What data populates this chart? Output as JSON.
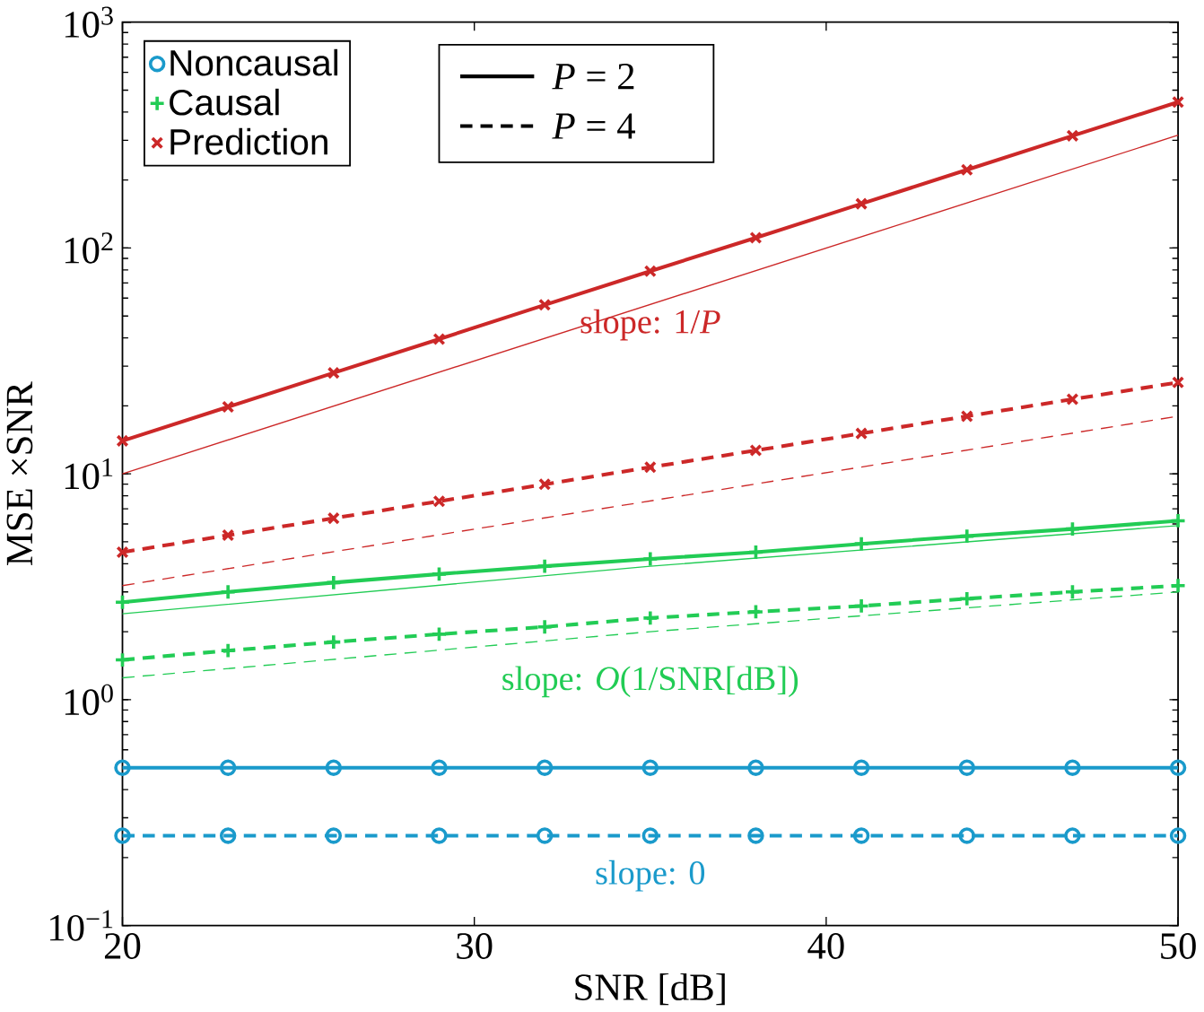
{
  "chart_data": {
    "type": "line",
    "xlabel": "SNR [dB]",
    "ylabel": "MSE ×SNR",
    "log": "y",
    "legend": "top left",
    "grid": false,
    "x": [
      20,
      23,
      26,
      29,
      32,
      35,
      38,
      41,
      44,
      47,
      50
    ],
    "xlim": [
      20,
      50
    ],
    "xticks": [
      20,
      30,
      40,
      50
    ],
    "ylim": [
      0.1,
      1000
    ],
    "yticks": [
      {
        "value": 0.1,
        "label": "10$^{−1}$"
      },
      {
        "value": 1,
        "label": "10$^{0}$"
      },
      {
        "value": 10,
        "label": "10$^{1}$"
      },
      {
        "value": 100,
        "label": "10$^{2}$"
      },
      {
        "value": 1000,
        "label": "10$^{3}$"
      }
    ],
    "series": [
      {
        "name": "Noncausal",
        "color": "#1a9acb",
        "marker": "circle",
        "line_style": "solid",
        "values": [
          0.5,
          0.5,
          0.5,
          0.5,
          0.5,
          0.5,
          0.5,
          0.5,
          0.5,
          0.5,
          0.5
        ]
      },
      {
        "name": "Causal",
        "color": "#22cc55",
        "marker": "plus",
        "line_style": "solid",
        "values": [
          2.7,
          3.0,
          3.3,
          3.6,
          3.9,
          4.2,
          4.5,
          4.9,
          5.3,
          5.7,
          6.2
        ]
      },
      {
        "name": "Prediction",
        "color": "#cc2828",
        "marker": "cross",
        "line_style": "solid",
        "values": [
          14,
          19.8,
          28,
          39.5,
          56,
          79,
          111,
          157,
          222,
          314,
          443
        ]
      },
      {
        "color": "#1a9acb",
        "marker": "circle",
        "line_style": "dashed",
        "values": [
          0.25,
          0.25,
          0.25,
          0.25,
          0.25,
          0.25,
          0.25,
          0.25,
          0.25,
          0.25,
          0.25
        ]
      },
      {
        "color": "#22cc55",
        "marker": "plus",
        "line_style": "dashed",
        "values": [
          1.5,
          1.65,
          1.8,
          1.95,
          2.1,
          2.3,
          2.45,
          2.6,
          2.8,
          3.0,
          3.2
        ]
      },
      {
        "color": "#cc2828",
        "marker": "cross",
        "line_style": "dashed",
        "values": [
          4.5,
          5.35,
          6.36,
          7.56,
          8.99,
          10.7,
          12.7,
          15.1,
          18,
          21.4,
          25.4
        ]
      },
      {
        "color": "#22cc55",
        "marker": "none",
        "line_style": "solid",
        "x": [
          20,
          35,
          50
        ],
        "values": [
          2.4,
          3.9,
          5.9
        ]
      },
      {
        "color": "#cc2828",
        "marker": "none",
        "line_style": "solid",
        "x": [
          20,
          50
        ],
        "values": [
          10,
          316
        ]
      },
      {
        "color": "#22cc55",
        "marker": "none",
        "line_style": "dashed",
        "x": [
          20,
          35,
          50
        ],
        "values": [
          1.25,
          2.0,
          3.0
        ]
      },
      {
        "color": "#cc2828",
        "marker": "none",
        "line_style": "dashed",
        "x": [
          20,
          50
        ],
        "values": [
          3.2,
          18
        ]
      }
    ],
    "annotations": [
      "slope: 1/*P*",
      "slope: *O*(1/SNR[dB])",
      "slope: 0",
      "*P* = 2",
      "*P* = 4"
    ]
  }
}
